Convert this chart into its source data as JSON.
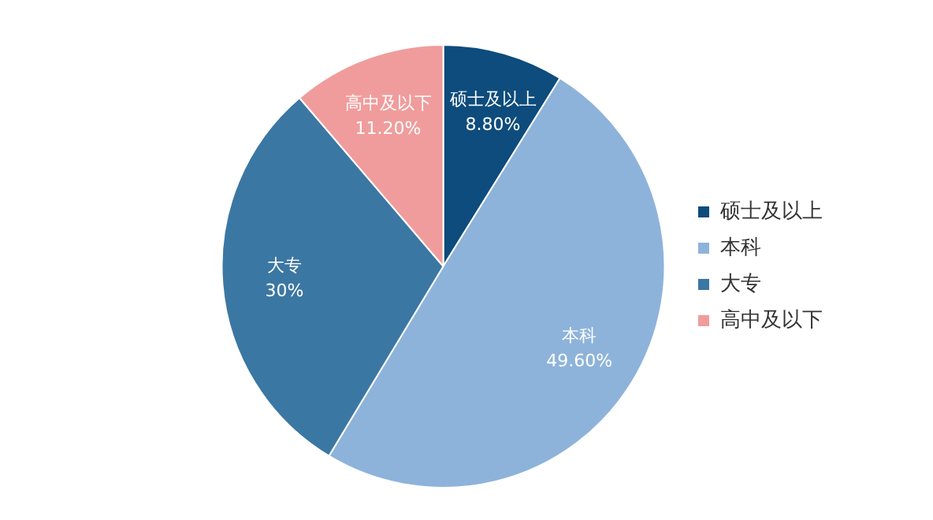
{
  "chart_data": {
    "type": "pie",
    "categories": [
      "硕士及以上",
      "本科",
      "大专",
      "高中及以下"
    ],
    "values": [
      8.8,
      49.6,
      30,
      11.2
    ],
    "colors": [
      "#0d4c7c",
      "#8db3da",
      "#3b77a3",
      "#f09c9c"
    ],
    "value_labels": [
      "8.80%",
      "49.60%",
      "30%",
      "11.20%"
    ],
    "legend": "right"
  }
}
